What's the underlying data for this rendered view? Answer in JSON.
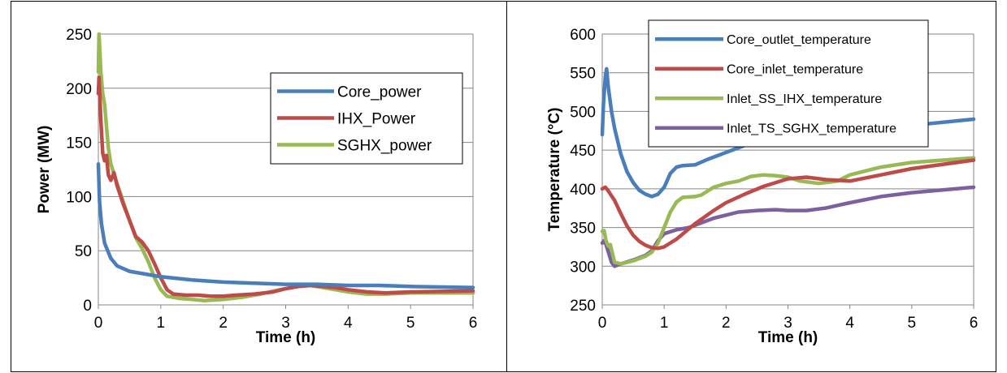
{
  "chart_data": [
    {
      "type": "line",
      "xlabel": "Time (h)",
      "ylabel": "Power (MW)",
      "xlim": [
        0,
        6
      ],
      "ylim": [
        0,
        250
      ],
      "x_ticks": [
        "0",
        "1",
        "2",
        "3",
        "4",
        "5",
        "6"
      ],
      "y_ticks": [
        "0",
        "50",
        "100",
        "150",
        "200",
        "250"
      ],
      "grid": "horizontal",
      "legend_position": "right",
      "series": [
        {
          "name": "Core_power",
          "color": "#4a7ebb",
          "points": [
            [
              0,
              130
            ],
            [
              0.02,
              95
            ],
            [
              0.05,
              75
            ],
            [
              0.1,
              57
            ],
            [
              0.2,
              43
            ],
            [
              0.3,
              36
            ],
            [
              0.5,
              31
            ],
            [
              0.8,
              28
            ],
            [
              1.0,
              26
            ],
            [
              1.5,
              23
            ],
            [
              2.0,
              21
            ],
            [
              2.5,
              20
            ],
            [
              3.0,
              19
            ],
            [
              3.5,
              19
            ],
            [
              4.0,
              18
            ],
            [
              4.5,
              18
            ],
            [
              5.0,
              17
            ],
            [
              6.0,
              16
            ]
          ]
        },
        {
          "name": "IHX_Power",
          "color": "#be4b48",
          "points": [
            [
              0,
              195
            ],
            [
              0.01,
              210
            ],
            [
              0.04,
              170
            ],
            [
              0.07,
              140
            ],
            [
              0.1,
              133
            ],
            [
              0.13,
              138
            ],
            [
              0.16,
              120
            ],
            [
              0.2,
              115
            ],
            [
              0.25,
              122
            ],
            [
              0.3,
              110
            ],
            [
              0.4,
              93
            ],
            [
              0.5,
              78
            ],
            [
              0.6,
              63
            ],
            [
              0.7,
              58
            ],
            [
              0.8,
              50
            ],
            [
              0.9,
              38
            ],
            [
              1.0,
              25
            ],
            [
              1.1,
              14
            ],
            [
              1.2,
              10
            ],
            [
              1.4,
              9
            ],
            [
              1.6,
              9
            ],
            [
              1.8,
              8
            ],
            [
              2.0,
              8
            ],
            [
              2.2,
              9
            ],
            [
              2.5,
              10
            ],
            [
              2.8,
              12
            ],
            [
              3.0,
              15
            ],
            [
              3.2,
              17
            ],
            [
              3.4,
              18
            ],
            [
              3.6,
              17
            ],
            [
              3.8,
              16
            ],
            [
              4.0,
              14
            ],
            [
              4.3,
              12
            ],
            [
              4.6,
              11
            ],
            [
              5.0,
              12
            ],
            [
              6.0,
              13
            ]
          ]
        },
        {
          "name": "SGHX_power",
          "color": "#98b954",
          "points": [
            [
              0,
              215
            ],
            [
              0.01,
              250
            ],
            [
              0.04,
              215
            ],
            [
              0.07,
              195
            ],
            [
              0.1,
              185
            ],
            [
              0.13,
              165
            ],
            [
              0.16,
              145
            ],
            [
              0.2,
              130
            ],
            [
              0.3,
              112
            ],
            [
              0.4,
              95
            ],
            [
              0.5,
              78
            ],
            [
              0.6,
              62
            ],
            [
              0.7,
              52
            ],
            [
              0.8,
              40
            ],
            [
              0.9,
              25
            ],
            [
              1.0,
              14
            ],
            [
              1.1,
              8
            ],
            [
              1.3,
              6
            ],
            [
              1.5,
              5
            ],
            [
              1.7,
              4
            ],
            [
              2.0,
              5
            ],
            [
              2.3,
              7
            ],
            [
              2.6,
              10
            ],
            [
              2.9,
              14
            ],
            [
              3.2,
              17
            ],
            [
              3.4,
              18
            ],
            [
              3.6,
              16
            ],
            [
              3.8,
              14
            ],
            [
              4.0,
              12
            ],
            [
              4.3,
              10
            ],
            [
              4.6,
              10
            ],
            [
              5.0,
              11
            ],
            [
              6.0,
              11
            ]
          ]
        }
      ]
    },
    {
      "type": "line",
      "xlabel": "Time (h)",
      "ylabel": "Temperature (°C)",
      "xlim": [
        0,
        6
      ],
      "ylim": [
        250,
        600
      ],
      "x_ticks": [
        "0",
        "1",
        "2",
        "3",
        "4",
        "5",
        "6"
      ],
      "y_ticks": [
        "250",
        "300",
        "350",
        "400",
        "450",
        "500",
        "550",
        "600"
      ],
      "grid": "horizontal",
      "legend_position": "top",
      "series": [
        {
          "name": "Core_outlet_temperature",
          "color": "#4a7ebb",
          "points": [
            [
              0,
              470
            ],
            [
              0.02,
              510
            ],
            [
              0.05,
              545
            ],
            [
              0.07,
              555
            ],
            [
              0.1,
              530
            ],
            [
              0.15,
              500
            ],
            [
              0.2,
              478
            ],
            [
              0.3,
              445
            ],
            [
              0.4,
              422
            ],
            [
              0.5,
              408
            ],
            [
              0.6,
              398
            ],
            [
              0.7,
              393
            ],
            [
              0.8,
              390
            ],
            [
              0.9,
              393
            ],
            [
              1.0,
              402
            ],
            [
              1.1,
              420
            ],
            [
              1.2,
              428
            ],
            [
              1.3,
              430
            ],
            [
              1.5,
              431
            ],
            [
              1.7,
              438
            ],
            [
              2.0,
              447
            ],
            [
              2.3,
              456
            ],
            [
              2.7,
              466
            ],
            [
              3.0,
              470
            ],
            [
              3.3,
              470
            ],
            [
              3.6,
              468
            ],
            [
              4.0,
              470
            ],
            [
              4.5,
              476
            ],
            [
              5.0,
              482
            ],
            [
              6.0,
              490
            ]
          ]
        },
        {
          "name": "Core_inlet_temperature",
          "color": "#be4b48",
          "points": [
            [
              0,
              400
            ],
            [
              0.05,
              402
            ],
            [
              0.1,
              397
            ],
            [
              0.2,
              385
            ],
            [
              0.3,
              368
            ],
            [
              0.4,
              352
            ],
            [
              0.5,
              340
            ],
            [
              0.6,
              332
            ],
            [
              0.7,
              327
            ],
            [
              0.8,
              324
            ],
            [
              0.9,
              323
            ],
            [
              1.0,
              325
            ],
            [
              1.2,
              335
            ],
            [
              1.5,
              355
            ],
            [
              1.8,
              372
            ],
            [
              2.0,
              382
            ],
            [
              2.3,
              393
            ],
            [
              2.6,
              403
            ],
            [
              3.0,
              413
            ],
            [
              3.3,
              415
            ],
            [
              3.6,
              412
            ],
            [
              4.0,
              410
            ],
            [
              4.5,
              418
            ],
            [
              5.0,
              426
            ],
            [
              6.0,
              437
            ]
          ]
        },
        {
          "name": "Inlet_SS_IHX_temperature",
          "color": "#98b954",
          "points": [
            [
              0,
              345
            ],
            [
              0.03,
              346
            ],
            [
              0.06,
              333
            ],
            [
              0.1,
              326
            ],
            [
              0.13,
              328
            ],
            [
              0.16,
              318
            ],
            [
              0.2,
              305
            ],
            [
              0.3,
              303
            ],
            [
              0.5,
              307
            ],
            [
              0.7,
              313
            ],
            [
              0.8,
              318
            ],
            [
              0.9,
              330
            ],
            [
              1.0,
              350
            ],
            [
              1.1,
              370
            ],
            [
              1.2,
              383
            ],
            [
              1.3,
              389
            ],
            [
              1.5,
              390
            ],
            [
              1.6,
              392
            ],
            [
              1.8,
              402
            ],
            [
              2.0,
              407
            ],
            [
              2.2,
              410
            ],
            [
              2.4,
              416
            ],
            [
              2.6,
              418
            ],
            [
              2.8,
              417
            ],
            [
              3.0,
              415
            ],
            [
              3.2,
              410
            ],
            [
              3.5,
              407
            ],
            [
              3.8,
              410
            ],
            [
              4.0,
              418
            ],
            [
              4.5,
              428
            ],
            [
              5.0,
              434
            ],
            [
              6.0,
              440
            ]
          ]
        },
        {
          "name": "Inlet_TS_SGHX_temperature",
          "color": "#7d60a0",
          "points": [
            [
              0,
              330
            ],
            [
              0.03,
              333
            ],
            [
              0.06,
              328
            ],
            [
              0.1,
              318
            ],
            [
              0.15,
              305
            ],
            [
              0.2,
              300
            ],
            [
              0.3,
              303
            ],
            [
              0.5,
              308
            ],
            [
              0.7,
              314
            ],
            [
              0.8,
              320
            ],
            [
              0.9,
              333
            ],
            [
              1.0,
              342
            ],
            [
              1.2,
              347
            ],
            [
              1.4,
              350
            ],
            [
              1.6,
              356
            ],
            [
              1.8,
              362
            ],
            [
              2.0,
              366
            ],
            [
              2.2,
              370
            ],
            [
              2.5,
              372
            ],
            [
              2.8,
              373
            ],
            [
              3.0,
              372
            ],
            [
              3.3,
              372
            ],
            [
              3.6,
              375
            ],
            [
              4.0,
              382
            ],
            [
              4.5,
              390
            ],
            [
              5.0,
              395
            ],
            [
              6.0,
              402
            ]
          ]
        }
      ]
    }
  ]
}
